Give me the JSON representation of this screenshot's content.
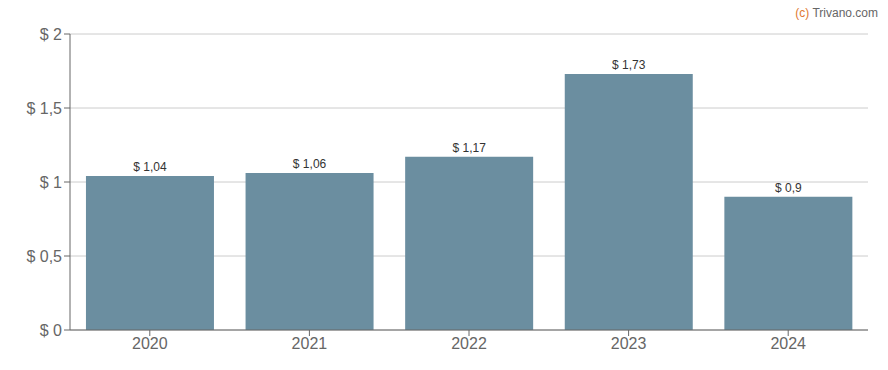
{
  "chart_data": {
    "type": "bar",
    "categories": [
      "2020",
      "2021",
      "2022",
      "2023",
      "2024"
    ],
    "values": [
      1.04,
      1.06,
      1.17,
      1.73,
      0.9
    ],
    "value_labels": [
      "$ 1,04",
      "$ 1,06",
      "$ 1,17",
      "$ 1,73",
      "$ 0,9"
    ],
    "data_labels": true,
    "color": "#6b8ea0",
    "ylim": [
      0,
      2.0
    ],
    "yticks": [
      {
        "value": 0,
        "label": "$ 0"
      },
      {
        "value": 0.5,
        "label": "$ 0,5"
      },
      {
        "value": 1.0,
        "label": "$ 1"
      },
      {
        "value": 1.5,
        "label": "$ 1,5"
      },
      {
        "value": 2.0,
        "label": "$ 2"
      }
    ],
    "grid": true,
    "annotations": [
      {
        "text": "(c)",
        "color": "#e07830"
      },
      {
        "text": " Trivano.com",
        "color": "#666666"
      }
    ]
  }
}
